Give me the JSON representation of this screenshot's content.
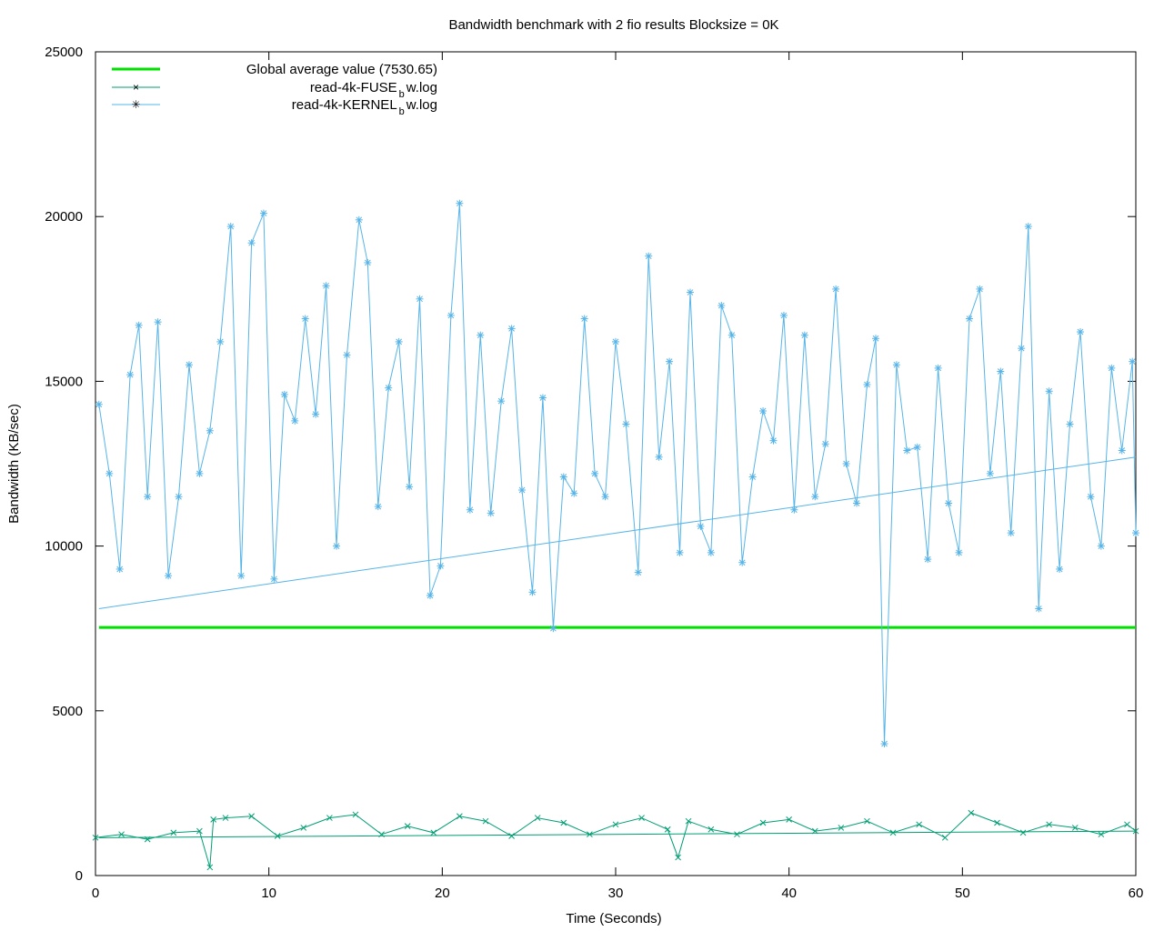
{
  "chart_data": {
    "type": "line",
    "title": "Bandwidth benchmark with 2 fio results Blocksize = 0K",
    "xlabel": "Time (Seconds)",
    "ylabel": "Bandwidth (KB/sec)",
    "xlim": [
      0,
      60
    ],
    "ylim": [
      0,
      25000
    ],
    "x_ticks": [
      "0",
      "10",
      "20",
      "30",
      "40",
      "50",
      "60"
    ],
    "y_ticks": [
      "0",
      "5000",
      "10000",
      "15000",
      "20000",
      "25000"
    ],
    "x_tick_values": [
      0,
      10,
      20,
      30,
      40,
      50,
      60
    ],
    "y_tick_values": [
      0,
      5000,
      10000,
      15000,
      20000,
      25000
    ],
    "grid": false,
    "legend_position": "top-left",
    "legend": [
      {
        "label": "Global average value (7530.65)",
        "kind": "average"
      },
      {
        "label_main": "read-4k-FUSE",
        "label_sub": "b",
        "label_end": "w.log",
        "kind": "fuse"
      },
      {
        "label_main": "read-4k-KERNEL",
        "label_sub": "b",
        "label_end": "w.log",
        "kind": "kernel"
      }
    ],
    "global_average": 7530.65,
    "trend_lines": {
      "kernel": {
        "x": [
          0.2,
          60
        ],
        "y": [
          8100,
          12700
        ]
      },
      "fuse": {
        "x": [
          0.2,
          60
        ],
        "y": [
          1150,
          1350
        ]
      }
    },
    "colors": {
      "average": "#00e000",
      "fuse": "#009e73",
      "kernel": "#56b4e9",
      "axis": "#000000"
    },
    "series": [
      {
        "name": "read-4k-KERNEL_bw.log",
        "x": [
          0.2,
          0.8,
          1.4,
          2.0,
          2.5,
          3.0,
          3.6,
          4.2,
          4.8,
          5.4,
          6.0,
          6.6,
          7.2,
          7.8,
          8.4,
          9.0,
          9.7,
          10.3,
          10.9,
          11.5,
          12.1,
          12.7,
          13.3,
          13.9,
          14.5,
          15.2,
          15.7,
          16.3,
          16.9,
          17.5,
          18.1,
          18.7,
          19.3,
          19.9,
          20.5,
          21.0,
          21.6,
          22.2,
          22.8,
          23.4,
          24.0,
          24.6,
          25.2,
          25.8,
          26.4,
          27.0,
          27.6,
          28.2,
          28.8,
          29.4,
          30.0,
          30.6,
          31.3,
          31.9,
          32.5,
          33.1,
          33.7,
          34.3,
          34.9,
          35.5,
          36.1,
          36.7,
          37.3,
          37.9,
          38.5,
          39.1,
          39.7,
          40.3,
          40.9,
          41.5,
          42.1,
          42.7,
          43.3,
          43.9,
          44.5,
          45.0,
          45.5,
          46.2,
          46.8,
          47.4,
          48.0,
          48.6,
          49.2,
          49.8,
          50.4,
          51.0,
          51.6,
          52.2,
          52.8,
          53.4,
          53.8,
          54.4,
          55.0,
          55.6,
          56.2,
          56.8,
          57.4,
          58.0,
          58.6,
          59.2,
          59.8,
          60.0
        ],
        "y": [
          14300,
          12200,
          9300,
          15200,
          16700,
          11500,
          16800,
          9100,
          11500,
          15500,
          12200,
          13500,
          16200,
          19700,
          9100,
          19200,
          20100,
          9000,
          14600,
          13800,
          16900,
          14000,
          17900,
          10000,
          15800,
          19900,
          18600,
          11200,
          14800,
          16200,
          11800,
          17500,
          8500,
          9400,
          17000,
          20400,
          11100,
          16400,
          11000,
          14400,
          16600,
          11700,
          8600,
          14500,
          7500,
          12100,
          11600,
          16900,
          12200,
          11500,
          16200,
          13700,
          9200,
          18800,
          12700,
          15600,
          9800,
          17700,
          10600,
          9800,
          17300,
          16400,
          9500,
          12100,
          14100,
          13200,
          17000,
          11100,
          16400,
          11500,
          13100,
          17800,
          12500,
          11300,
          14900,
          16300,
          4000,
          15500,
          12900,
          13000,
          9600,
          15400,
          11300,
          9800,
          16900,
          17800,
          12200,
          15300,
          10400,
          16000,
          19700,
          8100,
          14700,
          9300,
          13700,
          16500,
          11500,
          10000,
          15400,
          12900,
          15600,
          10400
        ]
      },
      {
        "name": "read-4k-FUSE_bw.log",
        "x": [
          0,
          1.5,
          3,
          4.5,
          6,
          6.6,
          6.8,
          7.5,
          9,
          10.5,
          12,
          13.5,
          15,
          16.5,
          18,
          19.5,
          21,
          22.5,
          24,
          25.5,
          27,
          28.5,
          30,
          31.5,
          33,
          33.6,
          34.2,
          35.5,
          37,
          38.5,
          40,
          41.5,
          43,
          44.5,
          46,
          47.5,
          49,
          50.5,
          52,
          53.5,
          55,
          56.5,
          58,
          59.5,
          60
        ],
        "y": [
          1150,
          1250,
          1100,
          1300,
          1350,
          250,
          1700,
          1750,
          1800,
          1200,
          1450,
          1750,
          1850,
          1250,
          1500,
          1300,
          1800,
          1650,
          1200,
          1750,
          1600,
          1250,
          1550,
          1750,
          1400,
          550,
          1650,
          1400,
          1250,
          1600,
          1700,
          1350,
          1450,
          1650,
          1300,
          1550,
          1150,
          1900,
          1600,
          1300,
          1550,
          1450,
          1250,
          1550,
          1350
        ]
      }
    ]
  }
}
